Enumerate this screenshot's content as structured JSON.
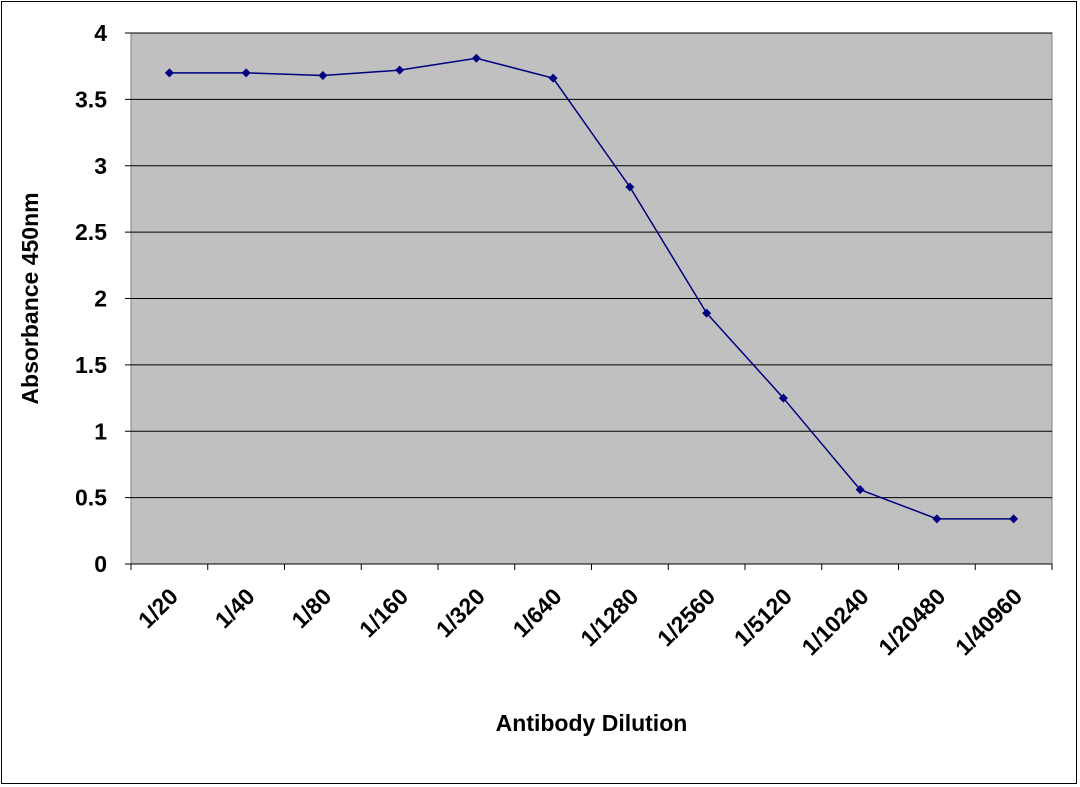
{
  "chart_data": {
    "type": "line",
    "title": "",
    "xlabel": "Antibody Dilution",
    "ylabel": "Absorbance 450nm",
    "categories": [
      "1/20",
      "1/40",
      "1/80",
      "1/160",
      "1/320",
      "1/640",
      "1/1280",
      "1/2560",
      "1/5120",
      "1/10240",
      "1/20480",
      "1/40960"
    ],
    "series": [
      {
        "values": [
          3.7,
          3.7,
          3.68,
          3.72,
          3.81,
          3.66,
          2.84,
          1.89,
          1.25,
          0.56,
          0.34,
          0.34
        ]
      }
    ],
    "ylim": [
      0,
      4
    ],
    "yticks": [
      "0",
      "0.5",
      "1",
      "1.5",
      "2",
      "2.5",
      "3",
      "3.5",
      "4"
    ],
    "grid": true,
    "legend": "none",
    "colors": {
      "plot_background": "#c0c0c0",
      "series_line": "#000080",
      "gridline": "#000000"
    }
  }
}
